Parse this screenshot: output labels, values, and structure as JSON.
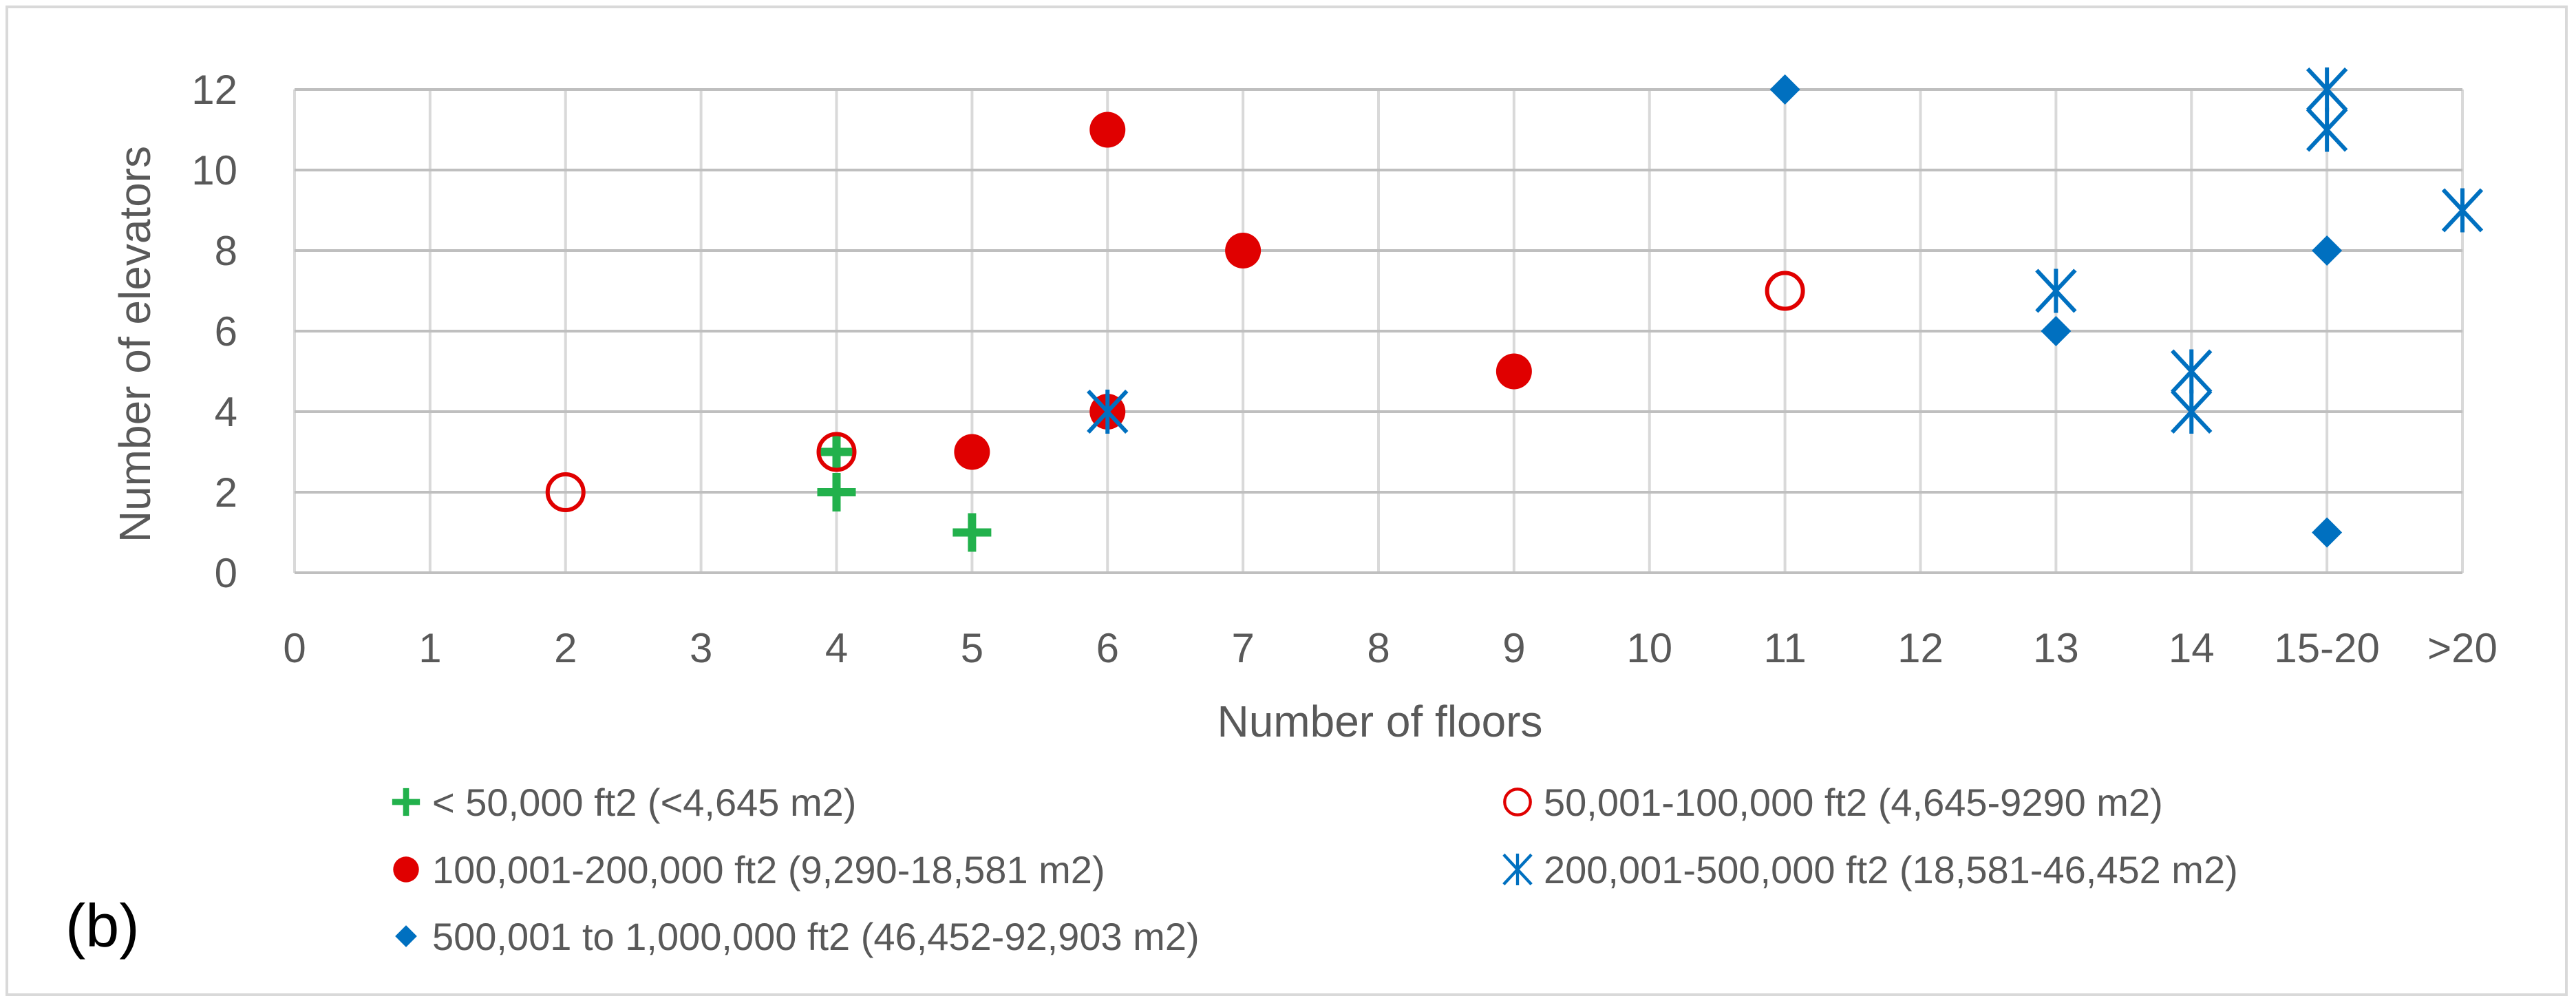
{
  "chart_data": {
    "type": "scatter",
    "panel_label": "(b)",
    "xlabel": "Number of floors",
    "ylabel": "Number of elevators",
    "categories": [
      "0",
      "1",
      "2",
      "3",
      "4",
      "5",
      "6",
      "7",
      "8",
      "9",
      "10",
      "11",
      "12",
      "13",
      "14",
      "15-20",
      ">20"
    ],
    "yticks": [
      "0",
      "2",
      "4",
      "6",
      "8",
      "10",
      "12"
    ],
    "ylim": [
      0,
      12
    ],
    "grid": true,
    "legend_position": "bottom",
    "series": [
      {
        "name": "< 50,000 ft2 (<4,645 m2)",
        "marker": "plus",
        "color": "#22b14c",
        "points": [
          {
            "x": "4",
            "y": 2
          },
          {
            "x": "4",
            "y": 3
          },
          {
            "x": "5",
            "y": 1
          }
        ]
      },
      {
        "name": "50,001-100,000 ft2 (4,645-9290 m2)",
        "marker": "circle-open",
        "color": "#e00000",
        "points": [
          {
            "x": "2",
            "y": 2
          },
          {
            "x": "4",
            "y": 3
          },
          {
            "x": "11",
            "y": 7
          }
        ]
      },
      {
        "name": "100,001-200,000 ft2 (9,290-18,581 m2)",
        "marker": "circle-filled",
        "color": "#e00000",
        "points": [
          {
            "x": "5",
            "y": 3
          },
          {
            "x": "6",
            "y": 4
          },
          {
            "x": "6",
            "y": 11
          },
          {
            "x": "7",
            "y": 8
          },
          {
            "x": "9",
            "y": 5
          }
        ]
      },
      {
        "name": "200,001-500,000 ft2 (18,581-46,452 m2)",
        "marker": "star",
        "color": "#0070c0",
        "points": [
          {
            "x": "6",
            "y": 4
          },
          {
            "x": "13",
            "y": 7
          },
          {
            "x": "14",
            "y": 4
          },
          {
            "x": "14",
            "y": 5
          },
          {
            "x": "15-20",
            "y": 11
          },
          {
            "x": "15-20",
            "y": 12
          },
          {
            "x": ">20",
            "y": 9
          }
        ]
      },
      {
        "name": "500,001 to 1,000,000 ft2 (46,452-92,903 m2)",
        "marker": "diamond",
        "color": "#0070c0",
        "points": [
          {
            "x": "11",
            "y": 12
          },
          {
            "x": "13",
            "y": 6
          },
          {
            "x": "15-20",
            "y": 8
          },
          {
            "x": "15-20",
            "y": 1
          }
        ]
      }
    ]
  }
}
